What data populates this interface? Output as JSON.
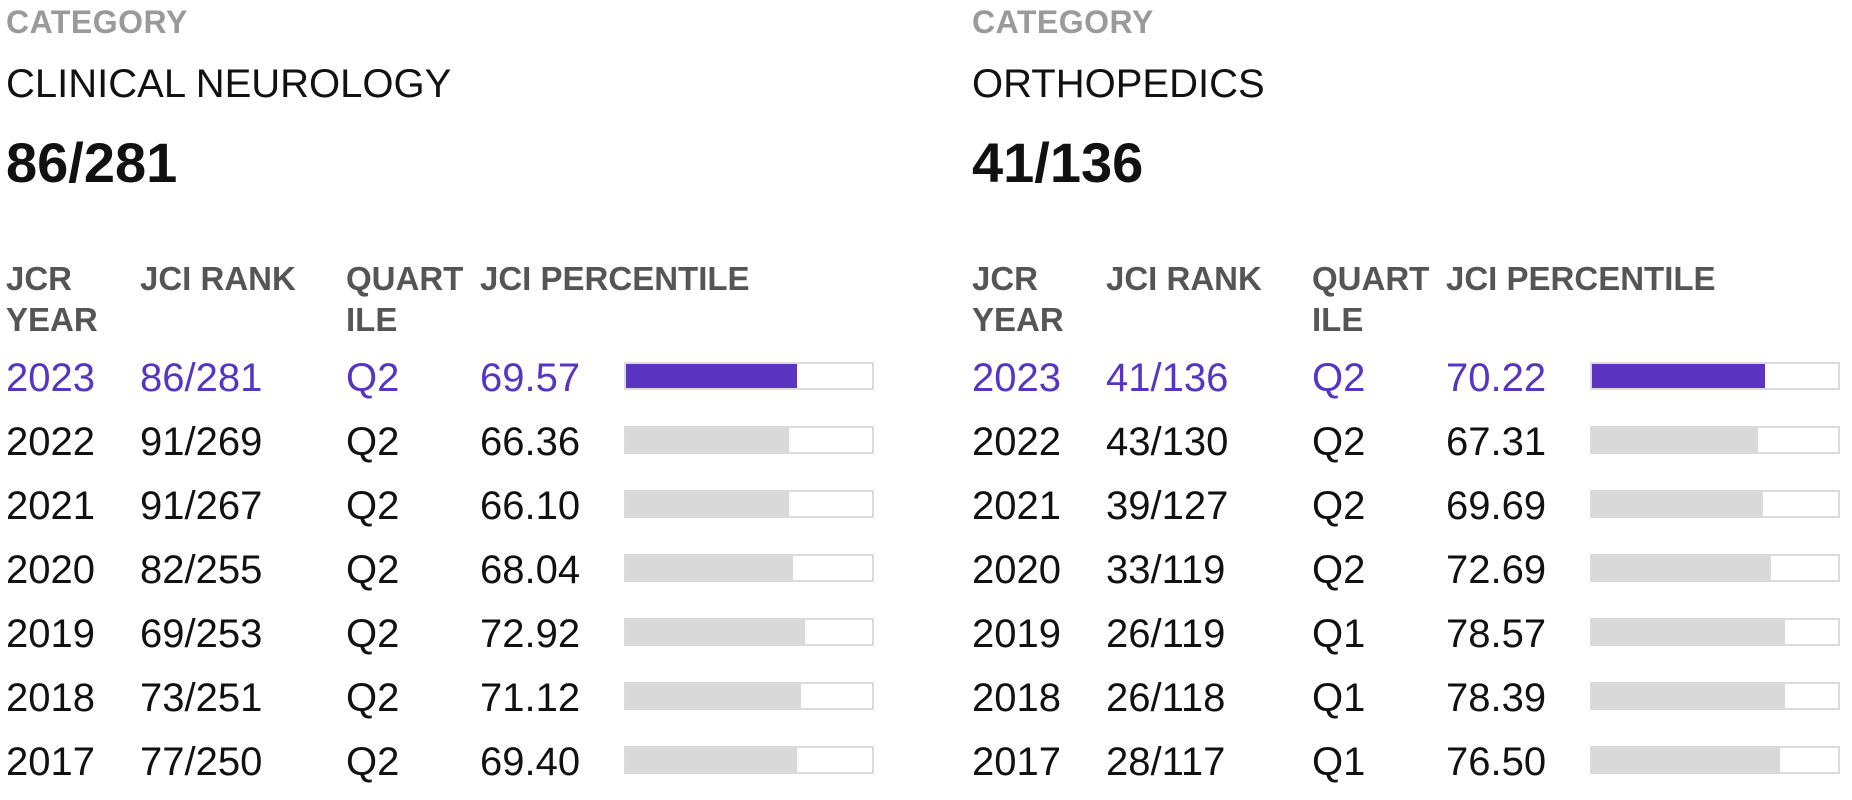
{
  "colors": {
    "accent": "#5634c4",
    "bar_current": "#5b35c2",
    "bar_other": "#d9d9d9",
    "label_gray": "#9a9a9a",
    "header_gray": "#555555"
  },
  "headers": {
    "year": "JCR\nYEAR",
    "rank": "JCI RANK",
    "quartile": "QUART\nILE",
    "percentile": "JCI PERCENTILE"
  },
  "panels": [
    {
      "category_label": "CATEGORY",
      "category_name": "CLINICAL NEUROLOGY",
      "category_rank": "86/281",
      "rows": [
        {
          "year": "2023",
          "rank": "86/281",
          "quartile": "Q2",
          "percentile": "69.57",
          "pct_value": 69.57,
          "current": true
        },
        {
          "year": "2022",
          "rank": "91/269",
          "quartile": "Q2",
          "percentile": "66.36",
          "pct_value": 66.36,
          "current": false
        },
        {
          "year": "2021",
          "rank": "91/267",
          "quartile": "Q2",
          "percentile": "66.10",
          "pct_value": 66.1,
          "current": false
        },
        {
          "year": "2020",
          "rank": "82/255",
          "quartile": "Q2",
          "percentile": "68.04",
          "pct_value": 68.04,
          "current": false
        },
        {
          "year": "2019",
          "rank": "69/253",
          "quartile": "Q2",
          "percentile": "72.92",
          "pct_value": 72.92,
          "current": false
        },
        {
          "year": "2018",
          "rank": "73/251",
          "quartile": "Q2",
          "percentile": "71.12",
          "pct_value": 71.12,
          "current": false
        },
        {
          "year": "2017",
          "rank": "77/250",
          "quartile": "Q2",
          "percentile": "69.40",
          "pct_value": 69.4,
          "current": false
        }
      ]
    },
    {
      "category_label": "CATEGORY",
      "category_name": "ORTHOPEDICS",
      "category_rank": "41/136",
      "rows": [
        {
          "year": "2023",
          "rank": "41/136",
          "quartile": "Q2",
          "percentile": "70.22",
          "pct_value": 70.22,
          "current": true
        },
        {
          "year": "2022",
          "rank": "43/130",
          "quartile": "Q2",
          "percentile": "67.31",
          "pct_value": 67.31,
          "current": false
        },
        {
          "year": "2021",
          "rank": "39/127",
          "quartile": "Q2",
          "percentile": "69.69",
          "pct_value": 69.69,
          "current": false
        },
        {
          "year": "2020",
          "rank": "33/119",
          "quartile": "Q2",
          "percentile": "72.69",
          "pct_value": 72.69,
          "current": false
        },
        {
          "year": "2019",
          "rank": "26/119",
          "quartile": "Q1",
          "percentile": "78.57",
          "pct_value": 78.57,
          "current": false
        },
        {
          "year": "2018",
          "rank": "26/118",
          "quartile": "Q1",
          "percentile": "78.39",
          "pct_value": 78.39,
          "current": false
        },
        {
          "year": "2017",
          "rank": "28/117",
          "quartile": "Q1",
          "percentile": "76.50",
          "pct_value": 76.5,
          "current": false
        }
      ]
    }
  ]
}
